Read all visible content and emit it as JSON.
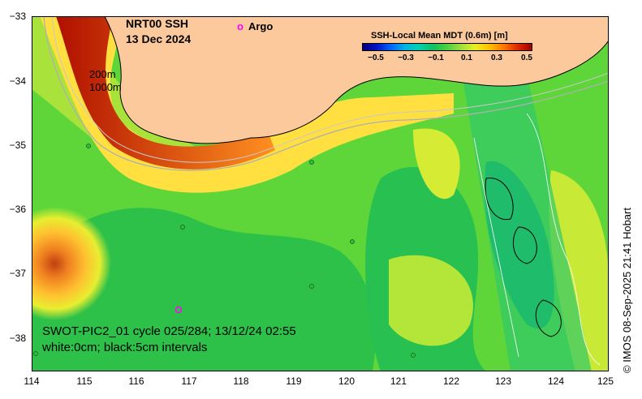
{
  "map": {
    "title_line1": "NRT00 SSH",
    "title_line2": "13 Dec 2024",
    "legend_argo_marker": "o",
    "legend_argo_label": "Argo",
    "isobath_200": "200m",
    "isobath_1000": "1000m",
    "colorbar_title": "SSH-Local Mean MDT (0.6m) [m]",
    "colorbar_ticks": [
      "−0.5",
      "−0.3",
      "−0.1",
      "0.1",
      "0.3",
      "0.5"
    ],
    "y_ticks": [
      "−33",
      "−34",
      "−35",
      "−36",
      "−37",
      "−38"
    ],
    "x_ticks": [
      "114",
      "115",
      "116",
      "117",
      "118",
      "119",
      "120",
      "121",
      "122",
      "123",
      "124",
      "125"
    ],
    "caption_line1": "SWOT-PIC2_01 cycle 025/284; 13/12/24 02:55",
    "caption_line2": "white:0cm; black:5cm intervals",
    "credit": "© IMOS 08-Sep-2025 21:41 Hobart",
    "colors": {
      "land": "#fcc99c",
      "background_green": "#5ed63a",
      "argo": "#ff00ff"
    }
  }
}
